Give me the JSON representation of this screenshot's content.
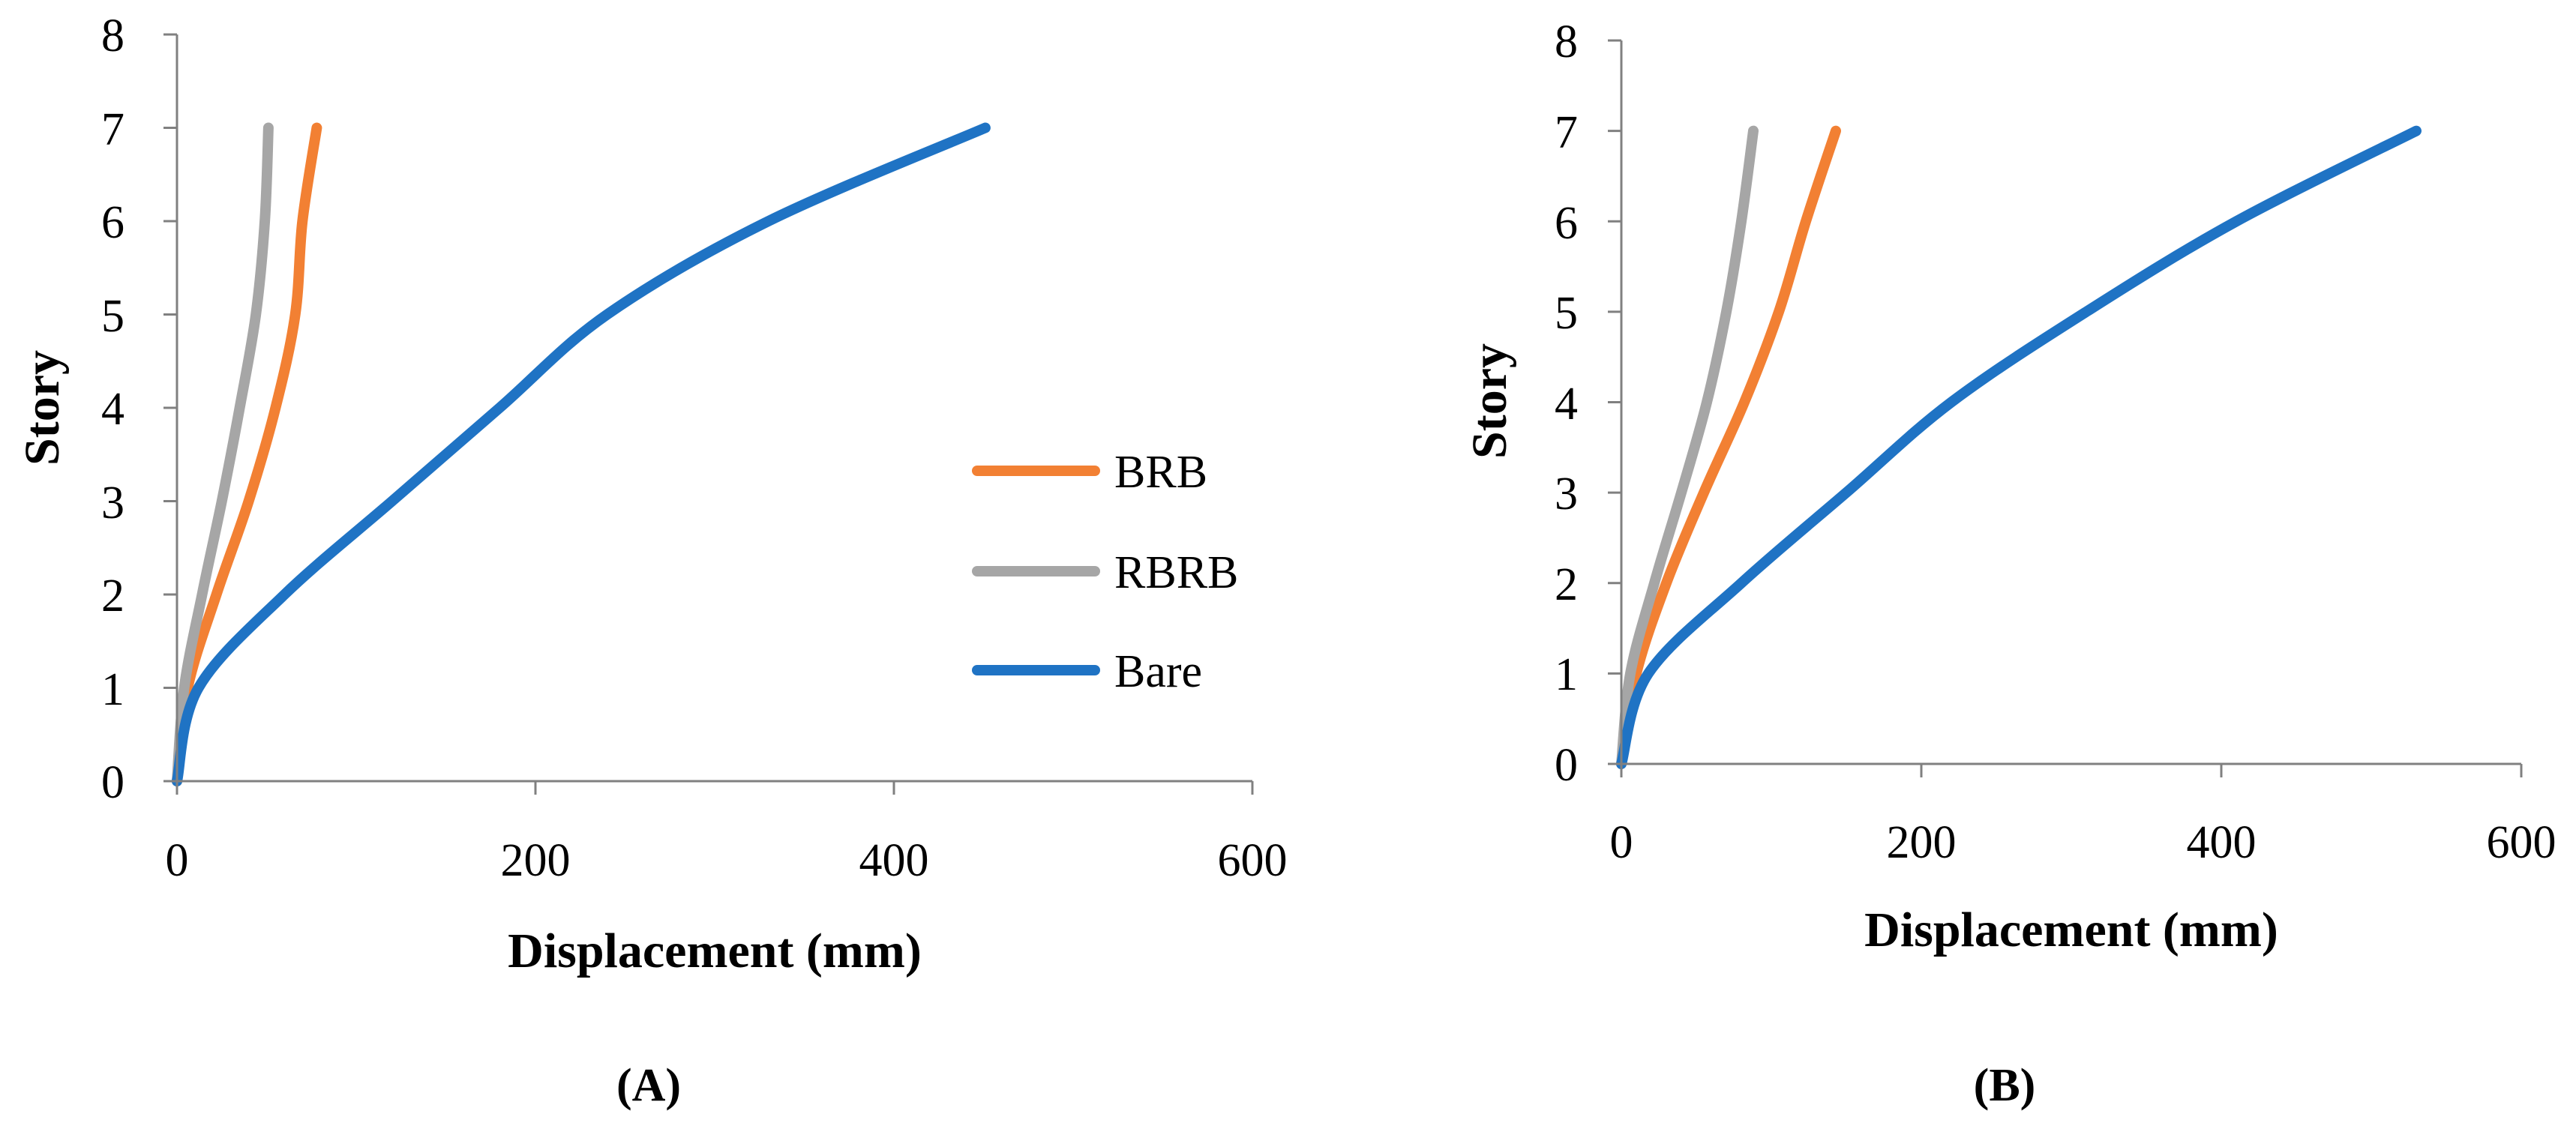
{
  "colors": {
    "BRB": "#F28033",
    "RBRB": "#A6A6A6",
    "Bare": "#1F73C4",
    "axis": "#808080"
  },
  "legend": {
    "items": [
      {
        "name": "BRB",
        "color": "#F28033"
      },
      {
        "name": "RBRB",
        "color": "#A6A6A6"
      },
      {
        "name": "Bare",
        "color": "#1F73C4"
      }
    ]
  },
  "chart_data": [
    {
      "type": "line",
      "panel_label": "(A)",
      "xlabel": "Displacement (mm)",
      "ylabel": "Story",
      "xlim": [
        0,
        600
      ],
      "ylim": [
        0,
        8
      ],
      "xticks": [
        "0",
        "200",
        "400",
        "600"
      ],
      "yticks": [
        "0",
        "1",
        "2",
        "3",
        "4",
        "5",
        "6",
        "7",
        "8"
      ],
      "grid": false,
      "legend_position": "right",
      "series": [
        {
          "name": "BRB",
          "points": [
            [
              0,
              0
            ],
            [
              6,
              1
            ],
            [
              22,
              2
            ],
            [
              40,
              3
            ],
            [
              55,
              4
            ],
            [
              66,
              5
            ],
            [
              70,
              6
            ],
            [
              78,
              7
            ]
          ]
        },
        {
          "name": "RBRB",
          "points": [
            [
              0,
              0
            ],
            [
              4,
              1
            ],
            [
              14,
              2
            ],
            [
              25,
              3
            ],
            [
              35,
              4
            ],
            [
              44,
              5
            ],
            [
              49,
              6
            ],
            [
              51,
              7
            ]
          ]
        },
        {
          "name": "Bare",
          "points": [
            [
              0,
              0
            ],
            [
              12,
              1
            ],
            [
              60,
              2
            ],
            [
              120,
              3
            ],
            [
              180,
              4
            ],
            [
              240,
              5
            ],
            [
              330,
              6
            ],
            [
              451,
              7
            ]
          ]
        }
      ]
    },
    {
      "type": "line",
      "panel_label": "(B)",
      "xlabel": "Displacement (mm)",
      "ylabel": "Story",
      "xlim": [
        0,
        600
      ],
      "ylim": [
        0,
        8
      ],
      "xticks": [
        "0",
        "200",
        "400",
        "600"
      ],
      "yticks": [
        "0",
        "1",
        "2",
        "3",
        "4",
        "5",
        "6",
        "7",
        "8"
      ],
      "grid": false,
      "series": [
        {
          "name": "BRB",
          "points": [
            [
              0,
              0
            ],
            [
              10,
              1
            ],
            [
              30,
              2
            ],
            [
              55,
              3
            ],
            [
              82,
              4
            ],
            [
              105,
              5
            ],
            [
              123,
              6
            ],
            [
              143,
              7
            ]
          ]
        },
        {
          "name": "RBRB",
          "points": [
            [
              0,
              0
            ],
            [
              6,
              1
            ],
            [
              22,
              2
            ],
            [
              40,
              3
            ],
            [
              57,
              4
            ],
            [
              70,
              5
            ],
            [
              80,
              6
            ],
            [
              88,
              7
            ]
          ]
        },
        {
          "name": "Bare",
          "points": [
            [
              0,
              0
            ],
            [
              18,
              1
            ],
            [
              80,
              2
            ],
            [
              150,
              3
            ],
            [
              220,
              4
            ],
            [
              310,
              5
            ],
            [
              410,
              6
            ],
            [
              530,
              7
            ]
          ]
        }
      ]
    }
  ]
}
